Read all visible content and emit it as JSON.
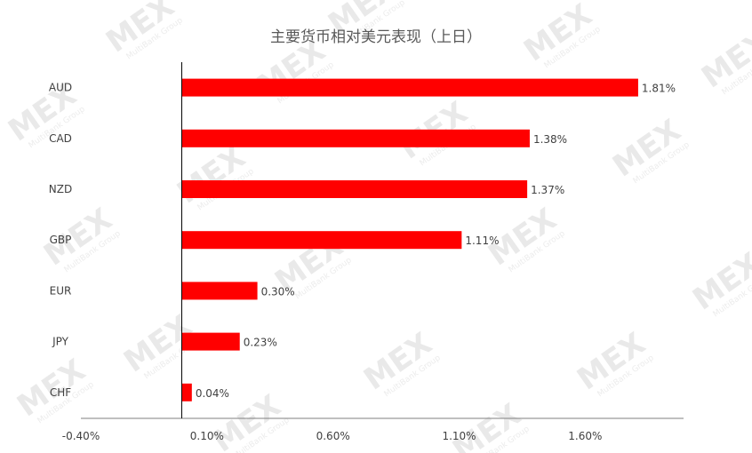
{
  "chart_data": {
    "type": "bar",
    "orientation": "horizontal",
    "title": "主要货币相对美元表现（上日）",
    "categories": [
      "AUD",
      "CAD",
      "NZD",
      "GBP",
      "EUR",
      "JPY",
      "CHF"
    ],
    "values": [
      1.81,
      1.38,
      1.37,
      1.11,
      0.3,
      0.23,
      0.04
    ],
    "data_labels": [
      "1.81%",
      "1.38%",
      "1.37%",
      "1.11%",
      "0.30%",
      "0.23%",
      "0.04%"
    ],
    "x_ticks": [
      -0.4,
      0.1,
      0.6,
      1.1,
      1.6
    ],
    "x_tick_labels": [
      "-0.40%",
      "0.10%",
      "0.60%",
      "1.10%",
      "1.60%"
    ],
    "xlim": [
      -0.4,
      1.99
    ],
    "unit": "%",
    "grid": false,
    "legend": "none",
    "bar_color": "#ff0000"
  },
  "watermark": {
    "brand": "MEX",
    "subtitle": "MultiBank Group"
  }
}
